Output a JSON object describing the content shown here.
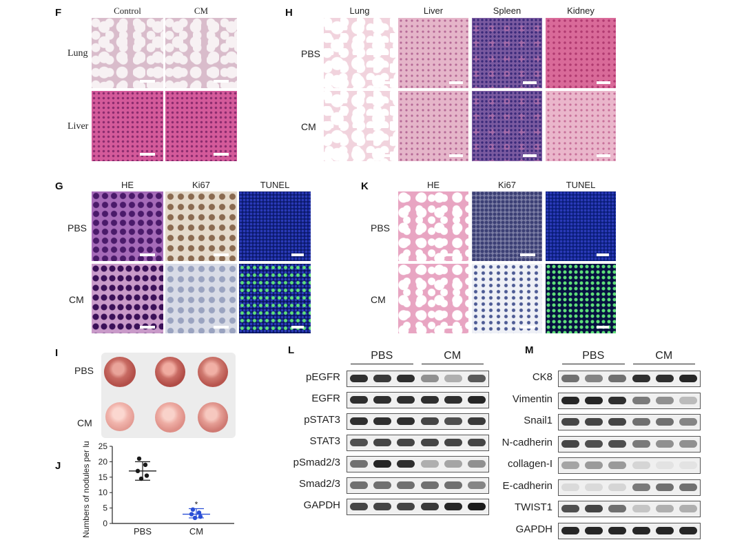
{
  "panels": {
    "F": {
      "letter": "F",
      "columns": [
        "Control",
        "CM"
      ],
      "rows": [
        "Lung",
        "Liver"
      ]
    },
    "H": {
      "letter": "H",
      "columns": [
        "Lung",
        "Liver",
        "Spleen",
        "Kidney"
      ],
      "rows": [
        "PBS",
        "CM"
      ]
    },
    "G": {
      "letter": "G",
      "columns": [
        "HE",
        "Ki67",
        "TUNEL"
      ],
      "rows": [
        "PBS",
        "CM"
      ]
    },
    "K": {
      "letter": "K",
      "columns": [
        "HE",
        "Ki67",
        "TUNEL"
      ],
      "rows": [
        "PBS",
        "CM"
      ]
    },
    "I": {
      "letter": "I",
      "rows": [
        "PBS",
        "CM"
      ]
    },
    "J": {
      "letter": "J"
    },
    "L": {
      "letter": "L",
      "groups": [
        "PBS",
        "CM"
      ],
      "proteins": [
        "pEGFR",
        "EGFR",
        "pSTAT3",
        "STAT3",
        "pSmad2/3",
        "Smad2/3",
        "GAPDH"
      ]
    },
    "M": {
      "letter": "M",
      "groups": [
        "PBS",
        "CM"
      ],
      "proteins": [
        "CK8",
        "Vimentin",
        "Snail1",
        "N-cadherin",
        "collagen-I",
        "E-cadherin",
        "TWIST1",
        "GAPDH"
      ]
    }
  },
  "chart_data": {
    "type": "scatter",
    "categories": [
      "PBS",
      "CM"
    ],
    "ylabel": "Numbers of nodules per lung",
    "ylim": [
      0,
      25
    ],
    "yticks": [
      "0",
      "5",
      "10",
      "15",
      "20",
      "25"
    ],
    "series": [
      {
        "category": "PBS",
        "points": [
          21,
          19,
          17,
          15.5,
          14.5
        ],
        "mean": 17,
        "sd_low": 14,
        "sd_high": 20
      },
      {
        "category": "CM",
        "points": [
          4.5,
          3.5,
          3,
          2.2,
          1.8
        ],
        "mean": 3,
        "sd_low": 1.8,
        "sd_high": 4.8
      }
    ],
    "annotation": "*",
    "colors": {
      "PBS": "#1a1a1a",
      "CM": "#2a4fd6"
    }
  }
}
